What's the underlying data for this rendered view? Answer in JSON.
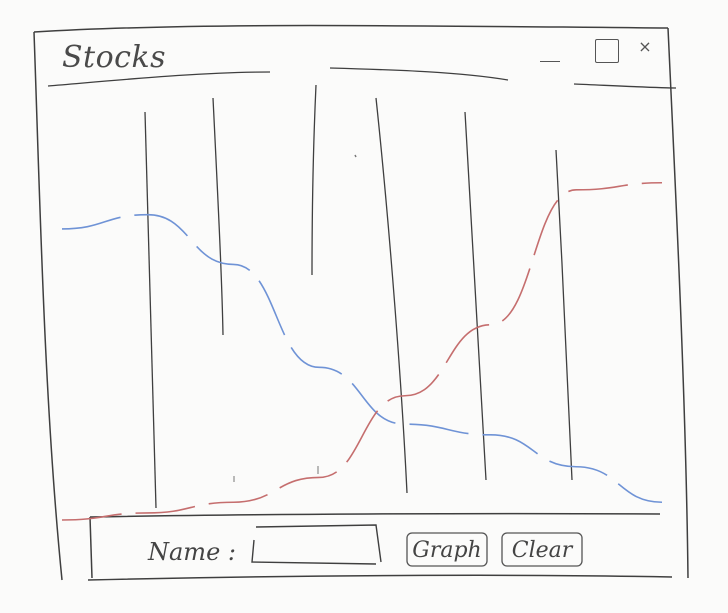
{
  "window": {
    "title": "Stocks",
    "controls": {
      "minimize": "",
      "maximize": "",
      "close": "×"
    }
  },
  "form": {
    "name_label": "Name :",
    "name_value": "",
    "graph_label": "Graph",
    "clear_label": "Clear"
  },
  "chart_data": {
    "type": "line",
    "series": [
      {
        "color": "#6f93d6",
        "values": [
          0.82,
          0.86,
          0.72,
          0.43,
          0.27,
          0.24,
          0.15,
          0.05
        ]
      },
      {
        "color": "#c56e6e",
        "values": [
          0.0,
          0.02,
          0.05,
          0.12,
          0.35,
          0.55,
          0.93,
          0.95
        ]
      }
    ],
    "colors": {
      "stroke": "#3f3f3f",
      "grid": "#3f3f3f"
    }
  }
}
